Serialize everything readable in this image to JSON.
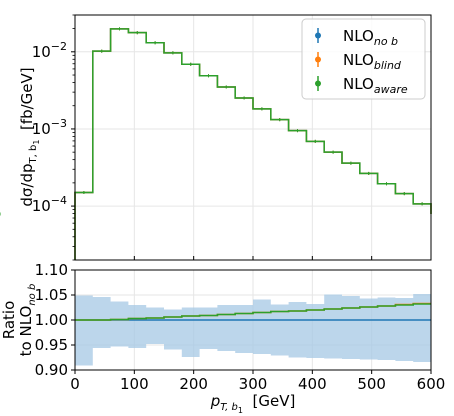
{
  "colors": {
    "nob": "#1f77b4",
    "blind": "#ff7f0e",
    "aware": "#2ca02c",
    "band": "#a6c8e4"
  },
  "chart_data": [
    {
      "type": "line",
      "scale": "log",
      "ylabel_parts": [
        "dσ/dp",
        "T, b",
        "1",
        "  [fb/GeV]"
      ],
      "ylim": [
        2e-05,
        0.03
      ],
      "xlim": [
        0,
        600
      ],
      "yticks": [
        {
          "base": "10",
          "exp": "−2",
          "value": 0.01
        },
        {
          "base": "10",
          "exp": "−3",
          "value": 0.001
        },
        {
          "base": "10",
          "exp": "−4",
          "value": 0.0001
        }
      ],
      "x_edges": [
        0,
        30,
        60,
        90,
        120,
        150,
        180,
        210,
        240,
        270,
        300,
        330,
        360,
        390,
        420,
        450,
        480,
        510,
        540,
        570,
        600
      ],
      "series": [
        {
          "name_base": "NLO",
          "name_sub": "no b",
          "color_key": "nob",
          "values": [
            0.00015,
            0.0102,
            0.0198,
            0.0177,
            0.0131,
            0.0097,
            0.0069,
            0.0049,
            0.0035,
            0.00252,
            0.00182,
            0.00132,
            0.00095,
            0.00069,
            0.0005,
            0.00036,
            0.000265,
            0.000195,
            0.000145,
            0.000107,
            7.9e-05
          ]
        },
        {
          "name_base": "NLO",
          "name_sub": "blind",
          "color_key": "blind",
          "values": [
            0.00015,
            0.0102,
            0.0198,
            0.0177,
            0.0131,
            0.0097,
            0.0069,
            0.0049,
            0.0035,
            0.00252,
            0.00182,
            0.00132,
            0.00095,
            0.00069,
            0.0005,
            0.00036,
            0.000265,
            0.000195,
            0.000145,
            0.000107,
            7.9e-05
          ]
        },
        {
          "name_base": "NLO",
          "name_sub": "aware",
          "color_key": "aware",
          "values": [
            0.00015,
            0.0102,
            0.0198,
            0.0177,
            0.0131,
            0.0097,
            0.0069,
            0.0049,
            0.0035,
            0.00252,
            0.00182,
            0.00132,
            0.00095,
            0.00069,
            0.0005,
            0.00036,
            0.000265,
            0.000195,
            0.000145,
            0.000107,
            7.9e-05
          ]
        }
      ],
      "grid": true,
      "legend": "top-right"
    },
    {
      "type": "line",
      "ylabel_line1": "Ratio",
      "ylabel_line2_base": "to NLO",
      "ylabel_line2_sub": "no b",
      "xlabel_base": "p",
      "xlabel_sub": "T, b",
      "xlabel_subsub": "1",
      "xlabel_unit": "  [GeV]",
      "xlim": [
        0,
        600
      ],
      "ylim": [
        0.9,
        1.1
      ],
      "xticks": [
        "0",
        "100",
        "200",
        "300",
        "400",
        "500",
        "600"
      ],
      "yticks": [
        "0.90",
        "0.95",
        "1.00",
        "1.05",
        "1.10"
      ],
      "x_edges": [
        0,
        30,
        60,
        90,
        120,
        150,
        180,
        210,
        240,
        270,
        300,
        330,
        360,
        390,
        420,
        450,
        480,
        510,
        540,
        570,
        600
      ],
      "band_low": [
        0.909,
        0.944,
        0.947,
        0.944,
        0.952,
        0.941,
        0.926,
        0.942,
        0.938,
        0.934,
        0.932,
        0.929,
        0.925,
        0.924,
        0.923,
        0.922,
        0.921,
        0.92,
        0.918,
        0.916
      ],
      "band_high": [
        1.049,
        1.046,
        1.037,
        1.03,
        1.025,
        1.021,
        1.025,
        1.025,
        1.03,
        1.03,
        1.041,
        1.031,
        1.036,
        1.032,
        1.051,
        1.048,
        1.043,
        1.045,
        1.044,
        1.052
      ],
      "series": [
        {
          "name": "NLO_no_b",
          "color_key": "nob",
          "values": [
            1.0,
            1.0,
            1.0,
            1.0,
            1.0,
            1.0,
            1.0,
            1.0,
            1.0,
            1.0,
            1.0,
            1.0,
            1.0,
            1.0,
            1.0,
            1.0,
            1.0,
            1.0,
            1.0,
            1.0
          ]
        },
        {
          "name": "NLO_blind",
          "color_key": "blind",
          "values": [
            1.0,
            1.0,
            1.001,
            1.003,
            1.004,
            1.006,
            1.008,
            1.009,
            1.011,
            1.013,
            1.015,
            1.017,
            1.018,
            1.02,
            1.022,
            1.024,
            1.026,
            1.028,
            1.031,
            1.033
          ]
        },
        {
          "name": "NLO_aware",
          "color_key": "aware",
          "values": [
            1.0,
            1.0,
            1.001,
            1.003,
            1.004,
            1.006,
            1.008,
            1.009,
            1.011,
            1.013,
            1.015,
            1.017,
            1.018,
            1.02,
            1.022,
            1.024,
            1.026,
            1.028,
            1.03,
            1.032
          ]
        }
      ],
      "grid": true
    }
  ]
}
